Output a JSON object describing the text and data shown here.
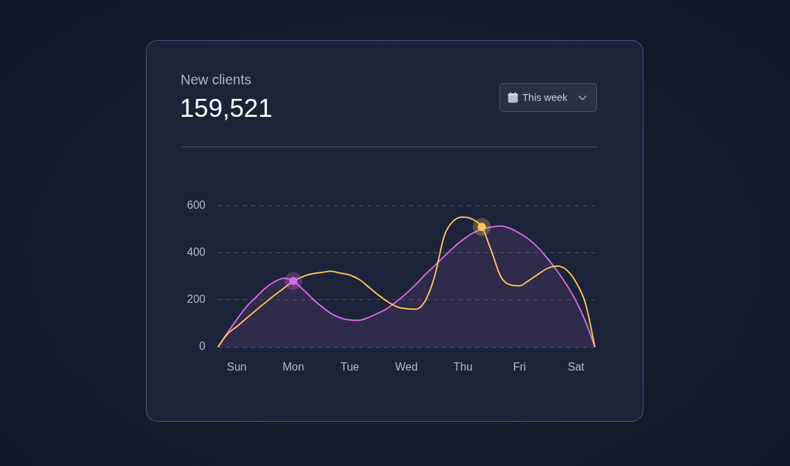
{
  "chart_data": {
    "type": "line",
    "title": "New clients",
    "subtitle": "159,521",
    "annotations": [
      "This week"
    ],
    "categories": [
      null,
      null,
      "Sun",
      null,
      null,
      null,
      null,
      null,
      "Mon",
      null,
      null,
      null,
      null,
      null,
      "Tue",
      null,
      null,
      null,
      null,
      null,
      "Wed",
      null,
      null,
      null,
      null,
      null,
      "Thu",
      null,
      null,
      null,
      null,
      null,
      "Fri",
      null,
      null,
      null,
      null,
      null,
      "Sat",
      null,
      null
    ],
    "ylim": [
      0,
      600
    ],
    "yticks": [
      0,
      200,
      400,
      600
    ],
    "grid": "y",
    "series": [
      {
        "type": "area",
        "color": "#d66be4",
        "values": [
          0,
          60,
          117,
          170,
          210,
          249,
          277,
          292,
          280,
          246,
          207,
          172,
          143,
          124,
          115,
          114,
          126,
          144,
          165,
          195,
          228,
          266,
          308,
          346,
          385,
          423,
          456,
          483,
          500,
          510,
          514,
          504,
          483,
          457,
          421,
          375,
          323,
          264,
          195,
          108,
          0
        ]
      },
      {
        "color": "#ffc55a",
        "values": [
          0,
          55,
          87,
          121,
          155,
          188,
          220,
          250,
          280,
          299,
          311,
          317,
          322,
          314,
          306,
          287,
          255,
          222,
          193,
          171,
          163,
          161,
          197,
          301,
          470,
          536,
          552,
          543,
          510,
          410,
          300,
          264,
          260,
          283,
          310,
          335,
          344,
          327,
          275,
          185,
          0
        ]
      },
      {
        "type": "scatter",
        "color": "#d66be4",
        "values": [
          null,
          null,
          null,
          null,
          null,
          null,
          null,
          null,
          280,
          null,
          null,
          null,
          null,
          null,
          null,
          null,
          null,
          null,
          null,
          null,
          null,
          null,
          null,
          null,
          null,
          null,
          null,
          null,
          null,
          null,
          null,
          null,
          null,
          null,
          null,
          null,
          null,
          null,
          null,
          null,
          null
        ]
      },
      {
        "type": "scatter",
        "color": "#ffc55a",
        "values": [
          null,
          null,
          null,
          null,
          null,
          null,
          null,
          null,
          null,
          null,
          null,
          null,
          null,
          null,
          null,
          null,
          null,
          null,
          null,
          null,
          null,
          null,
          null,
          null,
          null,
          null,
          null,
          null,
          510,
          null,
          null,
          null,
          null,
          null,
          null,
          null,
          null,
          null,
          null,
          null,
          null
        ]
      }
    ]
  }
}
